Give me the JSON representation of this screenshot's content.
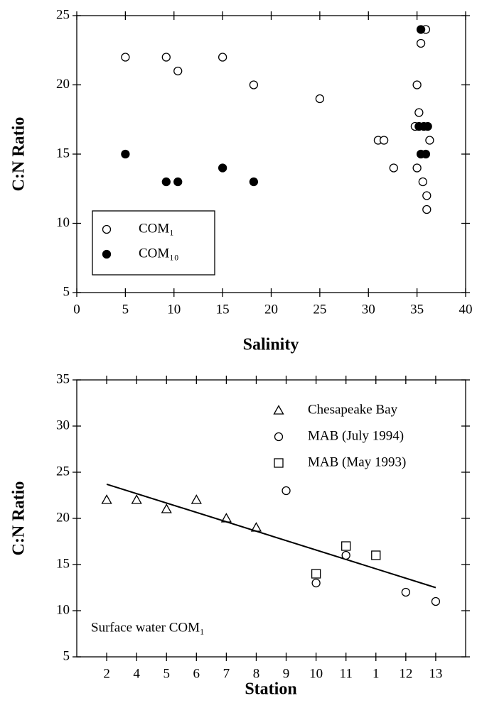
{
  "chart_data": [
    {
      "type": "scatter",
      "x_label": "Salinity",
      "y_label": "C:N Ratio",
      "xlim": [
        0,
        40
      ],
      "xticks": [
        0,
        5,
        10,
        15,
        20,
        25,
        30,
        35,
        40
      ],
      "ylim": [
        5,
        25
      ],
      "yticks": [
        5,
        10,
        15,
        20,
        25
      ],
      "legend": "lower left",
      "series": [
        {
          "name": "COM₁",
          "marker": "open-circle",
          "color": "#000",
          "x": [
            5,
            9.2,
            10.4,
            15,
            18.2,
            25,
            31,
            31.6,
            32.6,
            34.8,
            35,
            35.2,
            35.4,
            35.9,
            35,
            35.6,
            36,
            36,
            36.3
          ],
          "values": [
            22,
            22,
            21,
            22,
            20,
            19,
            16,
            16,
            14,
            17,
            20,
            18,
            23,
            24,
            14,
            13,
            12,
            11,
            16
          ]
        },
        {
          "name": "COM₁₀",
          "marker": "filled-circle",
          "color": "#000",
          "x": [
            5,
            9.2,
            10.4,
            15,
            18.2,
            35.4,
            35.2,
            35.7,
            36.1,
            35.4,
            35.9
          ],
          "values": [
            15,
            13,
            13,
            14,
            13,
            24,
            17,
            17,
            17,
            15,
            15
          ]
        }
      ]
    },
    {
      "type": "categorical-scatter",
      "x_label": "Station",
      "y_label": "C:N Ratio",
      "annotation": "Surface water COM₁",
      "categories": [
        "2",
        "4",
        "5",
        "6",
        "7",
        "8",
        "9",
        "10",
        "11",
        "1",
        "12",
        "13"
      ],
      "ylim": [
        5,
        35
      ],
      "yticks": [
        5,
        10,
        15,
        20,
        25,
        30,
        35
      ],
      "legend": "upper right",
      "series": [
        {
          "name": "Chesapeake Bay",
          "marker": "open-triangle",
          "color": "#000",
          "values": [
            22,
            22,
            21,
            22,
            20,
            19,
            null,
            null,
            null,
            null,
            null,
            null
          ]
        },
        {
          "name": "MAB (July 1994)",
          "marker": "open-circle",
          "color": "#000",
          "values": [
            null,
            null,
            null,
            null,
            null,
            null,
            23,
            13,
            16,
            null,
            12,
            11
          ]
        },
        {
          "name": "MAB (May 1993)",
          "marker": "open-square",
          "color": "#000",
          "values": [
            null,
            null,
            null,
            null,
            null,
            null,
            null,
            14,
            17,
            16,
            null,
            null
          ]
        }
      ],
      "trend_line": {
        "values": [
          23.7,
          12.5
        ]
      }
    }
  ]
}
